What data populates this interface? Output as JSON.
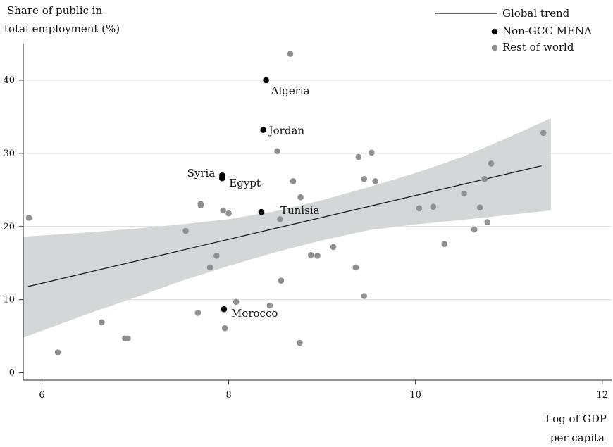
{
  "chart_data": {
    "type": "scatter",
    "ylabel_line1": "Share of public in",
    "ylabel_line2": "total employment (%)",
    "xlabel_line1": "Log of GDP",
    "xlabel_line2": "per capita",
    "xlim": [
      5.8,
      12.1
    ],
    "ylim": [
      -1,
      45
    ],
    "xticks": [
      6,
      8,
      10,
      12
    ],
    "yticks": [
      0,
      10,
      20,
      30,
      40
    ],
    "grid": "horizontal",
    "legend_position": "top-right",
    "colors": {
      "band": "#d4d7d7",
      "trend": "#111111",
      "mena": "#000000",
      "rest": "#8f8f8f",
      "grid": "#d9d9d9",
      "axis": "#222222"
    },
    "legend": {
      "trend": "Global trend",
      "mena": "Non-GCC MENA",
      "rest": "Rest of world"
    },
    "trend_line": [
      {
        "x": 5.85,
        "y": 11.8
      },
      {
        "x": 11.35,
        "y": 28.3
      }
    ],
    "confidence_band": {
      "x": [
        5.8,
        6.5,
        7.0,
        7.5,
        8.0,
        8.5,
        9.0,
        9.5,
        10.0,
        10.5,
        11.0,
        11.45
      ],
      "upper": [
        18.6,
        19.2,
        19.7,
        20.3,
        21.0,
        22.1,
        23.6,
        25.4,
        27.3,
        29.5,
        32.2,
        34.8
      ],
      "lower": [
        4.8,
        8.1,
        10.3,
        12.6,
        14.6,
        16.5,
        18.1,
        19.5,
        20.3,
        20.9,
        21.6,
        22.2
      ]
    },
    "series": [
      {
        "name": "Non-GCC MENA",
        "points": [
          {
            "x": 8.4,
            "y": 40.0,
            "label": "Algeria"
          },
          {
            "x": 8.37,
            "y": 33.2,
            "label": "Jordan"
          },
          {
            "x": 7.93,
            "y": 27.0,
            "label": "Syria"
          },
          {
            "x": 7.93,
            "y": 26.6,
            "label": "Egypt"
          },
          {
            "x": 8.35,
            "y": 22.0,
            "label": "Tunisia"
          },
          {
            "x": 7.95,
            "y": 8.7,
            "label": "Morocco"
          }
        ]
      },
      {
        "name": "Rest of world",
        "points": [
          {
            "x": 5.86,
            "y": 21.2
          },
          {
            "x": 6.17,
            "y": 2.8
          },
          {
            "x": 6.64,
            "y": 6.9
          },
          {
            "x": 6.89,
            "y": 4.7
          },
          {
            "x": 6.92,
            "y": 4.7
          },
          {
            "x": 7.54,
            "y": 19.4
          },
          {
            "x": 7.67,
            "y": 8.2
          },
          {
            "x": 7.7,
            "y": 23.1
          },
          {
            "x": 7.7,
            "y": 22.9
          },
          {
            "x": 7.8,
            "y": 14.4
          },
          {
            "x": 7.87,
            "y": 16.0
          },
          {
            "x": 7.94,
            "y": 22.2
          },
          {
            "x": 7.96,
            "y": 6.1
          },
          {
            "x": 8.0,
            "y": 21.8
          },
          {
            "x": 8.08,
            "y": 9.7
          },
          {
            "x": 8.44,
            "y": 9.2
          },
          {
            "x": 8.52,
            "y": 30.3
          },
          {
            "x": 8.55,
            "y": 21.0
          },
          {
            "x": 8.56,
            "y": 12.6
          },
          {
            "x": 8.66,
            "y": 43.6
          },
          {
            "x": 8.69,
            "y": 26.2
          },
          {
            "x": 8.77,
            "y": 24.0
          },
          {
            "x": 8.76,
            "y": 4.1
          },
          {
            "x": 8.88,
            "y": 16.1
          },
          {
            "x": 8.95,
            "y": 16.0
          },
          {
            "x": 9.12,
            "y": 17.2
          },
          {
            "x": 9.36,
            "y": 14.4
          },
          {
            "x": 9.39,
            "y": 29.5
          },
          {
            "x": 9.45,
            "y": 26.5
          },
          {
            "x": 9.45,
            "y": 10.5
          },
          {
            "x": 9.53,
            "y": 30.1
          },
          {
            "x": 9.57,
            "y": 26.2
          },
          {
            "x": 10.04,
            "y": 22.5
          },
          {
            "x": 10.19,
            "y": 22.7
          },
          {
            "x": 10.31,
            "y": 17.6
          },
          {
            "x": 10.52,
            "y": 24.5
          },
          {
            "x": 10.63,
            "y": 19.6
          },
          {
            "x": 10.69,
            "y": 22.6
          },
          {
            "x": 10.74,
            "y": 26.5
          },
          {
            "x": 10.77,
            "y": 20.6
          },
          {
            "x": 10.81,
            "y": 28.6
          },
          {
            "x": 11.37,
            "y": 32.8
          }
        ]
      }
    ]
  }
}
